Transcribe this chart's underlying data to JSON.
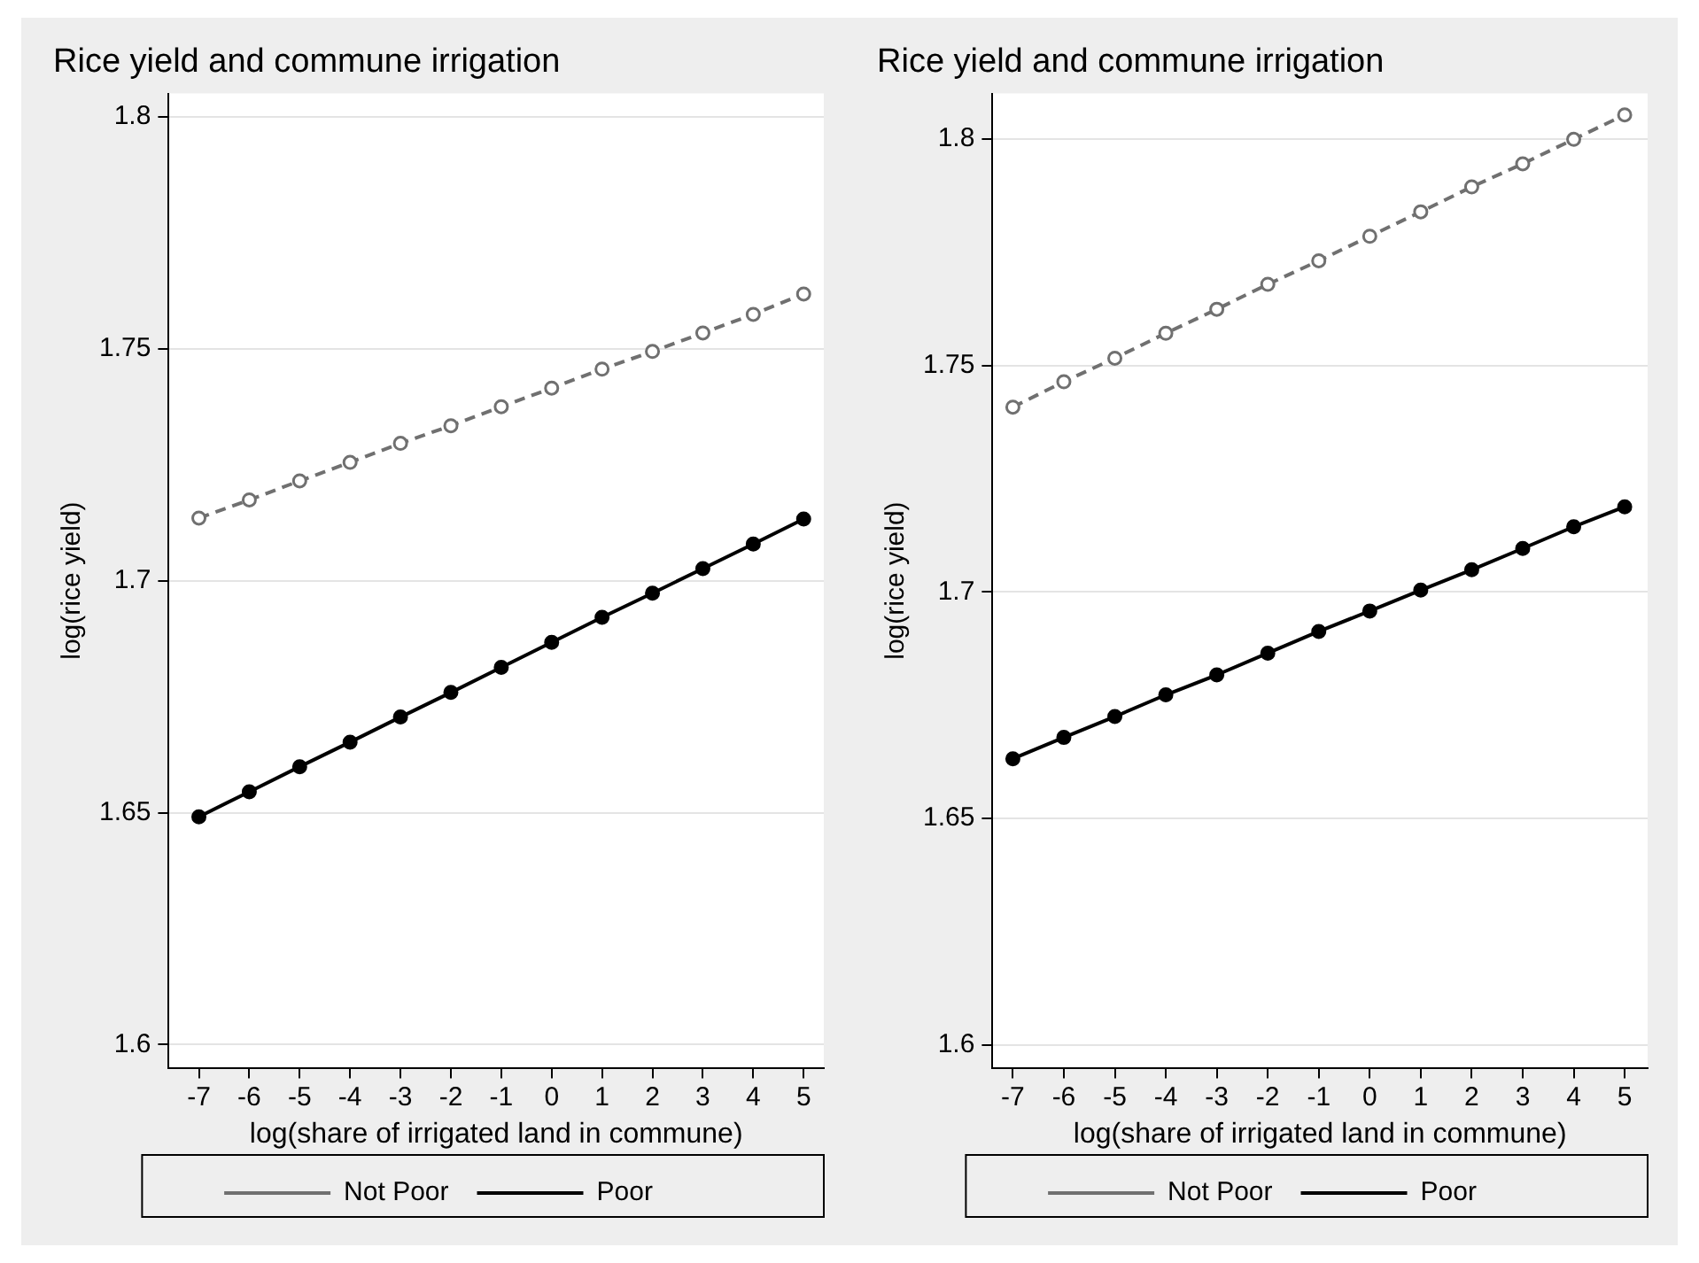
{
  "chart_data": [
    {
      "type": "line",
      "title": "Rice yield and commune irrigation",
      "xlabel": "log(share of irrigated land in commune)",
      "ylabel": "log(rice yield)",
      "x": [
        -7,
        -6,
        -5,
        -4,
        -3,
        -2,
        -1,
        0,
        1,
        2,
        3,
        4,
        5
      ],
      "series": [
        {
          "name": "Not Poor",
          "color": "#707070",
          "line_style": "dashed",
          "values": [
            1.7135,
            1.7174,
            1.7215,
            1.7255,
            1.7296,
            1.7334,
            1.7375,
            1.7415,
            1.7456,
            1.7494,
            1.7534,
            1.7574,
            1.7618
          ]
        },
        {
          "name": "Poor",
          "color": "#000000",
          "line_style": "solid",
          "values": [
            1.6491,
            1.6545,
            1.6599,
            1.6652,
            1.6706,
            1.6759,
            1.6813,
            1.6867,
            1.6921,
            1.6973,
            1.7026,
            1.7079,
            1.7133
          ]
        }
      ],
      "xlim": [
        -7.6,
        5.4
      ],
      "xticks": [
        -7,
        -6,
        -5,
        -4,
        -3,
        -2,
        -1,
        0,
        1,
        2,
        3,
        4,
        5
      ],
      "ylim": [
        1.595,
        1.805
      ],
      "yticks": [
        1.6,
        1.65,
        1.7,
        1.75,
        1.8
      ],
      "grid": "y",
      "legend": "bottom",
      "marker": "circle"
    },
    {
      "type": "line",
      "title": "Rice yield and commune irrigation",
      "xlabel": "log(share of irrigated land in commune)",
      "ylabel": "log(rice yield)",
      "x": [
        -7,
        -6,
        -5,
        -4,
        -3,
        -2,
        -1,
        0,
        1,
        2,
        3,
        4,
        5
      ],
      "series": [
        {
          "name": "Not Poor",
          "color": "#707070",
          "line_style": "dashed",
          "values": [
            1.7408,
            1.7464,
            1.7516,
            1.7571,
            1.7624,
            1.7679,
            1.7731,
            1.7785,
            1.7839,
            1.7894,
            1.7945,
            1.7999,
            1.8053
          ]
        },
        {
          "name": "Poor",
          "color": "#000000",
          "line_style": "solid",
          "values": [
            1.6632,
            1.6679,
            1.6725,
            1.6773,
            1.6817,
            1.6865,
            1.6913,
            1.6958,
            1.7004,
            1.7049,
            1.7096,
            1.7144,
            1.7188
          ]
        }
      ],
      "xlim": [
        -7.4,
        5.45
      ],
      "xticks": [
        -7,
        -6,
        -5,
        -4,
        -3,
        -2,
        -1,
        0,
        1,
        2,
        3,
        4,
        5
      ],
      "ylim": [
        1.595,
        1.81
      ],
      "yticks": [
        1.6,
        1.65,
        1.7,
        1.75,
        1.8
      ],
      "grid": "y",
      "legend": "bottom",
      "marker": "circle"
    }
  ]
}
